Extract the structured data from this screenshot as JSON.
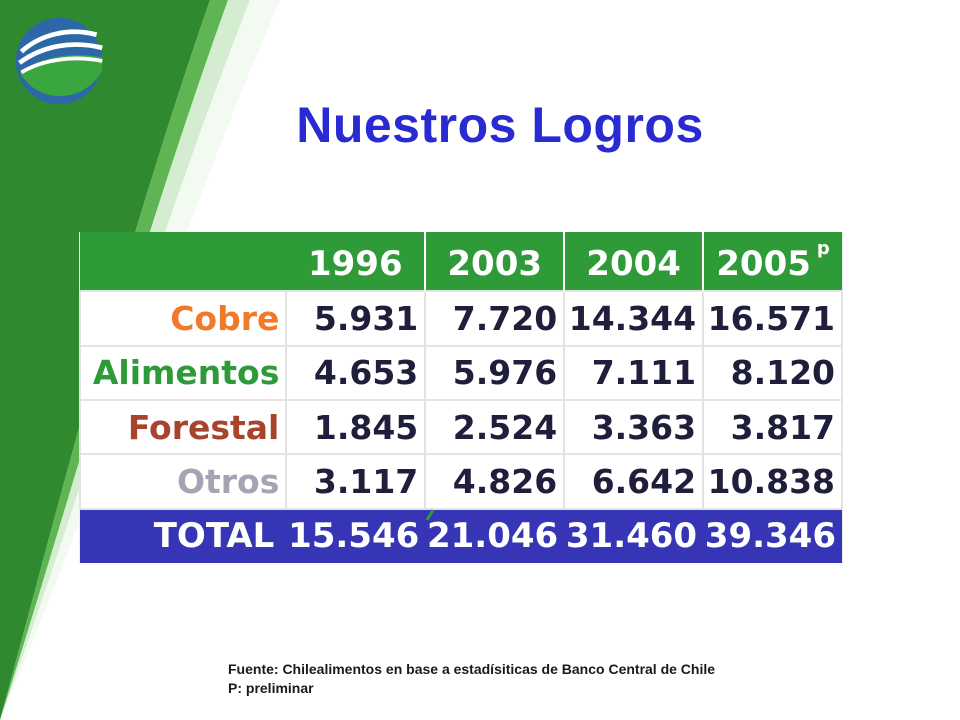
{
  "slide": {
    "title": "Nuestros Logros"
  },
  "table": {
    "headers": [
      "",
      "1996",
      "2003",
      "2004",
      "2005"
    ],
    "header_superscript": "p",
    "rows": [
      {
        "label": "Cobre",
        "label_color": "#f07a2a",
        "values": [
          "5.931",
          "7.720",
          "14.344",
          "16.571"
        ]
      },
      {
        "label": "Alimentos",
        "label_color": "#2e9a38",
        "values": [
          "4.653",
          "5.976",
          "7.111",
          "8.120"
        ]
      },
      {
        "label": "Forestal",
        "label_color": "#a9442c",
        "values": [
          "1.845",
          "2.524",
          "3.363",
          "3.817"
        ]
      },
      {
        "label": "Otros",
        "label_color": "#a4a4b4",
        "values": [
          "3.117",
          "4.826",
          "6.642",
          "10.838"
        ]
      }
    ],
    "total": {
      "label": "TOTAL",
      "values": [
        "15.546",
        "21.046",
        "31.460",
        "39.346"
      ]
    },
    "colors": {
      "header_bg": "#2e9a38",
      "total_bg": "#3535b6"
    }
  },
  "footnote": {
    "line1": "Fuente: Chilealimentos en base a estadísiticas de Banco Central de Chile",
    "line2": "P: preliminar"
  }
}
